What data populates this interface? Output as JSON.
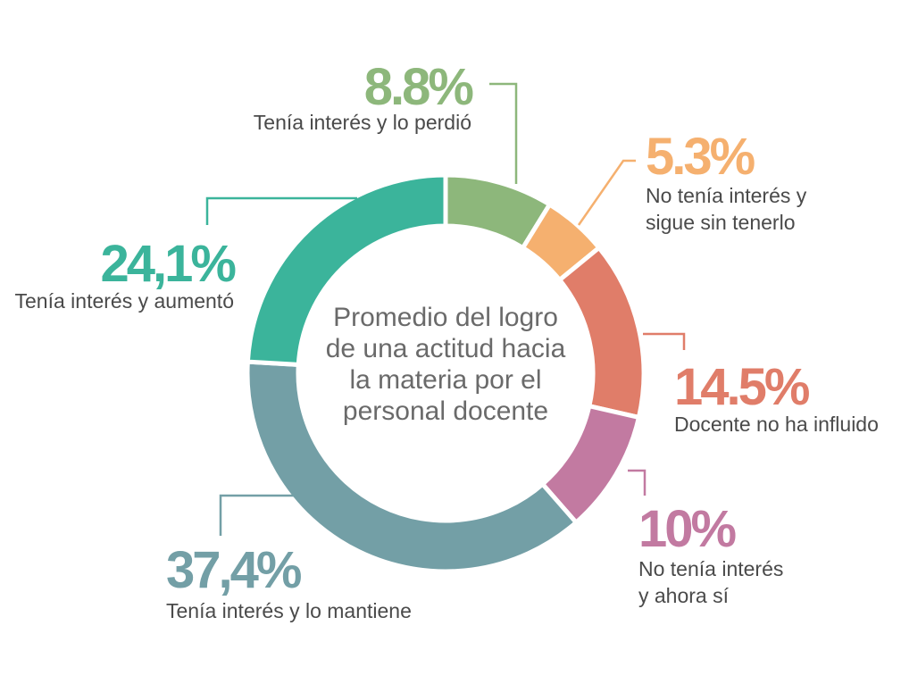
{
  "chart_data": {
    "type": "pie",
    "title": "",
    "center_label": [
      "Promedio del logro",
      "de una actitud hacia",
      "la materia por el",
      "personal docente"
    ],
    "slices": [
      {
        "id": "perdio",
        "value": 8.8,
        "pct_label": "8.8%",
        "label": [
          "Tenía interés y lo perdió"
        ],
        "color": "#8db77b"
      },
      {
        "id": "sigue-sin",
        "value": 5.3,
        "pct_label": "5.3%",
        "label": [
          "No tenía interés y",
          "sigue sin tenerlo"
        ],
        "color": "#f5b06f"
      },
      {
        "id": "no-influido",
        "value": 14.5,
        "pct_label": "14.5%",
        "label": [
          "Docente no ha influido"
        ],
        "color": "#e07d69"
      },
      {
        "id": "ahora-si",
        "value": 10,
        "pct_label": "10%",
        "label": [
          "No tenía interés",
          "y ahora sí"
        ],
        "color": "#c27aa1"
      },
      {
        "id": "mantiene",
        "value": 37.4,
        "pct_label": "37,4%",
        "label": [
          "Tenía interés y lo mantiene"
        ],
        "color": "#739fa6"
      },
      {
        "id": "aumento",
        "value": 24.1,
        "pct_label": "24,1%",
        "label": [
          "Tenía interés y aumentó"
        ],
        "color": "#3bb49b"
      }
    ]
  }
}
